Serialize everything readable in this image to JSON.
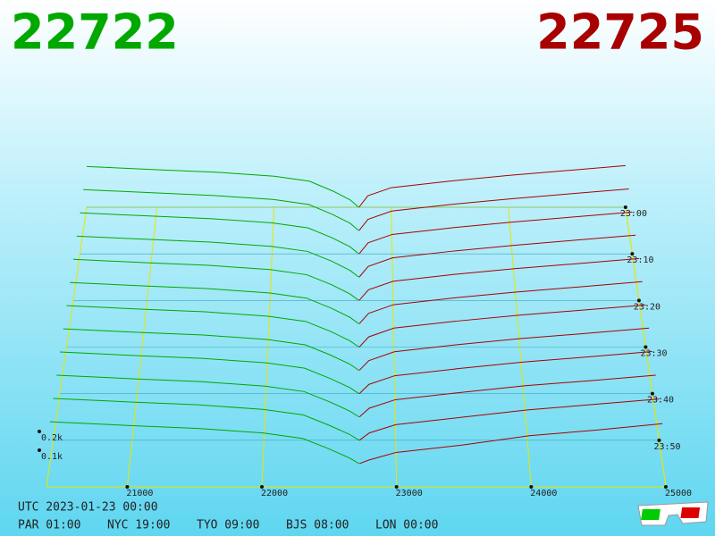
{
  "chart_data": {
    "type": "depth3d",
    "bid": 22722,
    "ask": 22725,
    "bid_color": "#00a800",
    "ask_color": "#a80000",
    "grid_color": "#e6e600",
    "xlim": [
      20400,
      25000
    ],
    "xticks": [
      21000,
      22000,
      23000,
      24000,
      25000
    ],
    "ylim": [
      0,
      60
    ],
    "yticks": [
      {
        "value": 0,
        "label": "23:00"
      },
      {
        "value": 10,
        "label": "23:10"
      },
      {
        "value": 20,
        "label": "23:20"
      },
      {
        "value": 30,
        "label": "23:30"
      },
      {
        "value": 40,
        "label": "23:40"
      },
      {
        "value": 50,
        "label": "23:50"
      }
    ],
    "zlim": [
      0,
      300
    ],
    "zticks": [
      {
        "value": 100,
        "label": "0.1k"
      },
      {
        "value": 200,
        "label": "0.2k"
      }
    ],
    "bid_prices": [
      22722,
      22650,
      22500,
      22300,
      22000,
      21500,
      21000,
      20400
    ],
    "ask_prices": [
      22725,
      22800,
      23000,
      23500,
      24000,
      24500,
      25000
    ],
    "layers": [
      {
        "time": 0,
        "bids": [
          0,
          45,
          100,
          160,
          190,
          215,
          230,
          250
        ],
        "asks": [
          0,
          70,
          120,
          160,
          195,
          225,
          255
        ]
      },
      {
        "time": 5,
        "bids": [
          0,
          44,
          98,
          158,
          188,
          212,
          228,
          248
        ],
        "asks": [
          0,
          68,
          118,
          158,
          192,
          222,
          252
        ]
      },
      {
        "time": 10,
        "bids": [
          0,
          42,
          96,
          155,
          185,
          210,
          226,
          245
        ],
        "asks": [
          0,
          66,
          116,
          156,
          190,
          220,
          250
        ]
      },
      {
        "time": 15,
        "bids": [
          0,
          40,
          94,
          152,
          182,
          207,
          223,
          242
        ],
        "asks": [
          0,
          64,
          114,
          154,
          188,
          218,
          248
        ]
      },
      {
        "time": 20,
        "bids": [
          0,
          38,
          92,
          150,
          180,
          205,
          220,
          240
        ],
        "asks": [
          0,
          62,
          112,
          152,
          186,
          215,
          245
        ]
      },
      {
        "time": 25,
        "bids": [
          0,
          37,
          90,
          148,
          178,
          203,
          218,
          238
        ],
        "asks": [
          0,
          60,
          110,
          150,
          184,
          213,
          243
        ]
      },
      {
        "time": 30,
        "bids": [
          0,
          36,
          88,
          146,
          176,
          201,
          216,
          236
        ],
        "asks": [
          0,
          58,
          108,
          148,
          182,
          211,
          240
        ]
      },
      {
        "time": 35,
        "bids": [
          0,
          35,
          86,
          144,
          174,
          199,
          214,
          234
        ],
        "asks": [
          0,
          55,
          105,
          145,
          180,
          208,
          238
        ]
      },
      {
        "time": 40,
        "bids": [
          0,
          34,
          84,
          142,
          172,
          197,
          212,
          232
        ],
        "asks": [
          0,
          52,
          100,
          140,
          176,
          205,
          235
        ]
      },
      {
        "time": 45,
        "bids": [
          0,
          33,
          82,
          140,
          170,
          195,
          210,
          230
        ],
        "asks": [
          0,
          48,
          95,
          135,
          172,
          200,
          230
        ]
      },
      {
        "time": 50,
        "bids": [
          0,
          32,
          80,
          138,
          168,
          193,
          208,
          228
        ],
        "asks": [
          0,
          40,
          85,
          125,
          165,
          195,
          225
        ]
      },
      {
        "time": 55,
        "bids": [
          0,
          30,
          78,
          135,
          165,
          190,
          205,
          225
        ],
        "asks": [
          0,
          20,
          60,
          100,
          150,
          180,
          215
        ]
      }
    ]
  },
  "footer": {
    "utc": "UTC 2023-01-23 00:00",
    "zones": [
      "PAR 01:00",
      "NYC 19:00",
      "TYO 09:00",
      "BJS 08:00",
      "LON 00:00"
    ]
  }
}
